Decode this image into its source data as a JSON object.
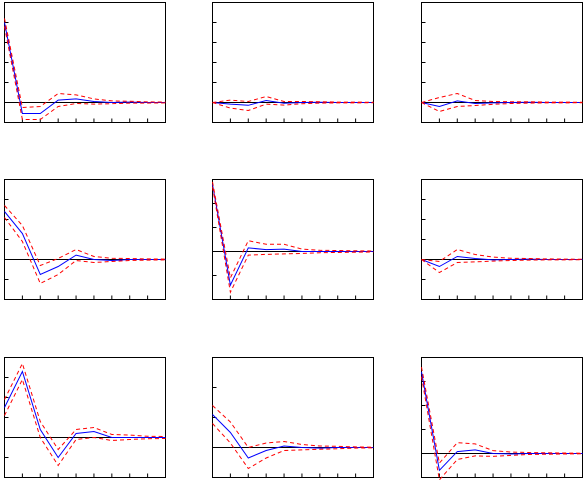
{
  "colors": {
    "impulse_response": "#0000ff",
    "confidence_band": "#ff0000",
    "zero_line": "#000000",
    "frame": "#000000",
    "background": "#ffffff"
  },
  "chart_data": [
    {
      "type": "line",
      "panel": "row1-col1",
      "x": [
        1,
        2,
        3,
        4,
        5,
        6,
        7,
        8,
        9,
        10
      ],
      "ylim": [
        -1,
        5
      ],
      "grid": false,
      "legend": "none",
      "series": [
        {
          "role": "response",
          "values": [
            4.0,
            -0.55,
            -0.55,
            0.12,
            0.18,
            0.05,
            0.0,
            0.02,
            0.0,
            0.0
          ]
        },
        {
          "role": "upper-band",
          "values": [
            4.2,
            -0.25,
            -0.2,
            0.45,
            0.38,
            0.18,
            0.08,
            0.06,
            0.03,
            0.02
          ]
        },
        {
          "role": "lower-band",
          "values": [
            3.8,
            -0.85,
            -0.85,
            -0.2,
            -0.05,
            -0.08,
            -0.06,
            -0.03,
            -0.03,
            -0.02
          ]
        }
      ]
    },
    {
      "type": "line",
      "panel": "row1-col2",
      "x": [
        1,
        2,
        3,
        4,
        5,
        6,
        7,
        8,
        9,
        10
      ],
      "ylim": [
        -1,
        5
      ],
      "grid": false,
      "legend": "none",
      "series": [
        {
          "role": "response",
          "values": [
            0.0,
            -0.08,
            -0.14,
            0.1,
            -0.04,
            0.0,
            0.01,
            0.0,
            0.0,
            0.0
          ]
        },
        {
          "role": "upper-band",
          "values": [
            0.0,
            0.12,
            0.05,
            0.3,
            0.05,
            0.05,
            0.04,
            0.02,
            0.02,
            0.01
          ]
        },
        {
          "role": "lower-band",
          "values": [
            0.0,
            -0.28,
            -0.4,
            -0.08,
            -0.13,
            -0.06,
            -0.03,
            -0.02,
            -0.02,
            -0.01
          ]
        }
      ]
    },
    {
      "type": "line",
      "panel": "row1-col3",
      "x": [
        1,
        2,
        3,
        4,
        5,
        6,
        7,
        8,
        9,
        10
      ],
      "ylim": [
        -1,
        5
      ],
      "grid": false,
      "legend": "none",
      "series": [
        {
          "role": "response",
          "values": [
            0.0,
            -0.2,
            0.08,
            -0.05,
            -0.02,
            0.0,
            0.01,
            0.0,
            0.0,
            0.0
          ]
        },
        {
          "role": "upper-band",
          "values": [
            0.0,
            0.25,
            0.45,
            0.1,
            0.05,
            0.04,
            0.04,
            0.02,
            0.02,
            0.01
          ]
        },
        {
          "role": "lower-band",
          "values": [
            0.0,
            -0.45,
            -0.2,
            -0.15,
            -0.09,
            -0.05,
            -0.03,
            -0.02,
            -0.02,
            -0.01
          ]
        }
      ]
    },
    {
      "type": "line",
      "panel": "row2-col1",
      "x": [
        1,
        2,
        3,
        4,
        5,
        6,
        7,
        8,
        9,
        10
      ],
      "ylim": [
        -2,
        4
      ],
      "grid": false,
      "legend": "none",
      "series": [
        {
          "role": "response",
          "values": [
            2.4,
            1.3,
            -0.75,
            -0.35,
            0.22,
            0.0,
            -0.05,
            0.0,
            0.0,
            0.0
          ]
        },
        {
          "role": "upper-band",
          "values": [
            2.7,
            1.7,
            -0.3,
            0.05,
            0.5,
            0.15,
            0.06,
            0.05,
            0.03,
            0.02
          ]
        },
        {
          "role": "lower-band",
          "values": [
            2.1,
            0.9,
            -1.2,
            -0.75,
            -0.05,
            -0.15,
            -0.1,
            -0.05,
            -0.03,
            -0.02
          ]
        }
      ]
    },
    {
      "type": "line",
      "panel": "row2-col2",
      "x": [
        1,
        2,
        3,
        4,
        5,
        6,
        7,
        8,
        9,
        10
      ],
      "ylim": [
        -2,
        3
      ],
      "grid": false,
      "legend": "none",
      "series": [
        {
          "role": "response",
          "values": [
            2.8,
            -1.4,
            0.15,
            0.08,
            0.1,
            0.0,
            0.0,
            0.0,
            0.0,
            0.0
          ]
        },
        {
          "role": "upper-band",
          "values": [
            2.9,
            -1.1,
            0.45,
            0.3,
            0.3,
            0.1,
            0.05,
            0.04,
            0.03,
            0.02
          ]
        },
        {
          "role": "lower-band",
          "values": [
            2.7,
            -1.7,
            -0.15,
            -0.12,
            -0.1,
            -0.08,
            -0.05,
            -0.04,
            -0.03,
            -0.02
          ]
        }
      ]
    },
    {
      "type": "line",
      "panel": "row2-col3",
      "x": [
        1,
        2,
        3,
        4,
        5,
        6,
        7,
        8,
        9,
        10
      ],
      "ylim": [
        -2,
        4
      ],
      "grid": false,
      "legend": "none",
      "series": [
        {
          "role": "response",
          "values": [
            0.0,
            -0.35,
            0.15,
            0.05,
            -0.02,
            0.0,
            0.02,
            0.0,
            0.0,
            0.0
          ]
        },
        {
          "role": "upper-band",
          "values": [
            0.0,
            -0.1,
            0.5,
            0.25,
            0.12,
            0.06,
            0.05,
            0.03,
            0.02,
            0.01
          ]
        },
        {
          "role": "lower-band",
          "values": [
            0.0,
            -0.65,
            -0.15,
            -0.12,
            -0.08,
            -0.05,
            -0.03,
            -0.02,
            -0.02,
            -0.01
          ]
        }
      ]
    },
    {
      "type": "line",
      "panel": "row3-col1",
      "x": [
        1,
        2,
        3,
        4,
        5,
        6,
        7,
        8,
        9,
        10
      ],
      "ylim": [
        -2,
        4
      ],
      "grid": false,
      "legend": "none",
      "series": [
        {
          "role": "response",
          "values": [
            1.5,
            3.3,
            0.4,
            -1.0,
            0.2,
            0.3,
            0.0,
            0.0,
            0.0,
            0.0
          ]
        },
        {
          "role": "upper-band",
          "values": [
            1.9,
            3.7,
            0.8,
            -0.6,
            0.4,
            0.5,
            0.15,
            0.12,
            0.06,
            0.05
          ]
        },
        {
          "role": "lower-band",
          "values": [
            1.1,
            2.9,
            0.0,
            -1.4,
            -0.1,
            0.0,
            -0.15,
            -0.1,
            -0.06,
            -0.05
          ]
        }
      ]
    },
    {
      "type": "line",
      "panel": "row3-col2",
      "x": [
        1,
        2,
        3,
        4,
        5,
        6,
        7,
        8,
        9,
        10
      ],
      "ylim": [
        -1,
        3
      ],
      "grid": false,
      "legend": "none",
      "series": [
        {
          "role": "response",
          "values": [
            1.1,
            0.5,
            -0.35,
            -0.1,
            0.05,
            0.0,
            -0.02,
            0.0,
            0.0,
            0.0
          ]
        },
        {
          "role": "upper-band",
          "values": [
            1.4,
            0.85,
            0.0,
            0.15,
            0.2,
            0.1,
            0.05,
            0.04,
            0.02,
            0.01
          ]
        },
        {
          "role": "lower-band",
          "values": [
            0.8,
            0.15,
            -0.7,
            -0.35,
            -0.1,
            -0.08,
            -0.06,
            -0.04,
            -0.02,
            -0.01
          ]
        }
      ]
    },
    {
      "type": "line",
      "panel": "row3-col3",
      "x": [
        1,
        2,
        3,
        4,
        5,
        6,
        7,
        8,
        9,
        10
      ],
      "ylim": [
        -1,
        4
      ],
      "grid": false,
      "legend": "none",
      "series": [
        {
          "role": "response",
          "values": [
            3.4,
            -0.7,
            0.08,
            0.15,
            0.0,
            -0.02,
            0.0,
            0.0,
            0.0,
            0.0
          ]
        },
        {
          "role": "upper-band",
          "values": [
            3.6,
            -0.4,
            0.45,
            0.4,
            0.12,
            0.06,
            0.04,
            0.03,
            0.02,
            0.01
          ]
        },
        {
          "role": "lower-band",
          "values": [
            3.2,
            -1.1,
            -0.25,
            -0.1,
            -0.12,
            -0.08,
            -0.04,
            -0.03,
            -0.02,
            -0.01
          ]
        }
      ]
    }
  ]
}
